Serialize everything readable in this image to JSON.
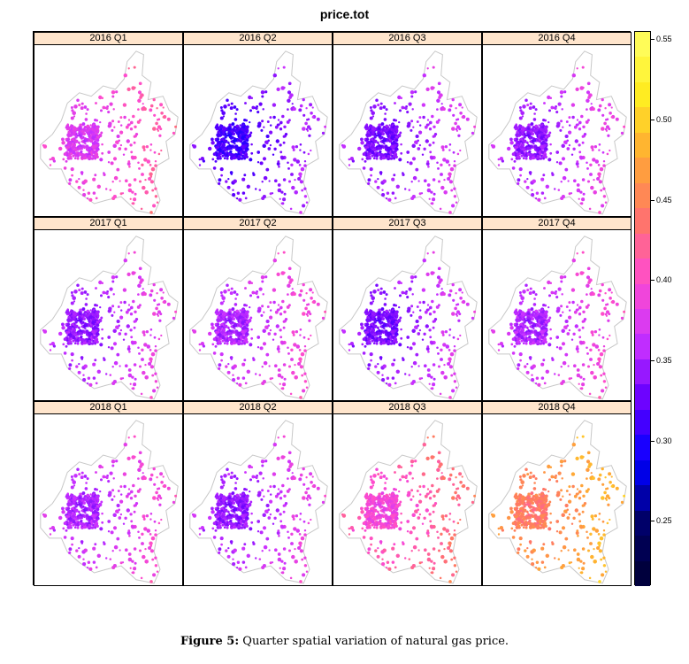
{
  "chart_data": {
    "type": "heatmap",
    "title": "price.tot",
    "panels": [
      "2016 Q1",
      "2016 Q2",
      "2016 Q3",
      "2016 Q4",
      "2017 Q1",
      "2017 Q2",
      "2017 Q3",
      "2017 Q4",
      "2018 Q1",
      "2018 Q2",
      "2018 Q3",
      "2018 Q4"
    ],
    "panel_typical_price": [
      0.41,
      0.35,
      0.37,
      0.38,
      0.38,
      0.39,
      0.37,
      0.39,
      0.39,
      0.38,
      0.43,
      0.48
    ],
    "colorkey": {
      "ticks": [
        0.25,
        0.3,
        0.35,
        0.4,
        0.45,
        0.5,
        0.55
      ],
      "tick_labels": [
        "0.25",
        "0.30",
        "0.35",
        "0.40",
        "0.45",
        "0.50",
        "0.55"
      ],
      "range": [
        0.21,
        0.555
      ],
      "colors": [
        "#000033",
        "#000066",
        "#0000ff",
        "#6600ff",
        "#cc33ff",
        "#ff4dcc",
        "#ff7766",
        "#ffaa33",
        "#ffee22",
        "#ffff66"
      ]
    },
    "layout": "4 columns x 3 rows",
    "xlabel": "",
    "ylabel": ""
  },
  "caption": {
    "label": "Figure 5:",
    "text": "Quarter spatial variation of natural gas price."
  }
}
